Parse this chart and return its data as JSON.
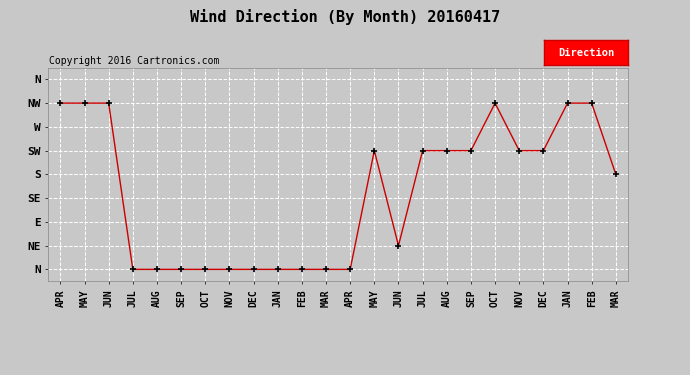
{
  "title": "Wind Direction (By Month) 20160417",
  "copyright": "Copyright 2016 Cartronics.com",
  "legend_label": "Direction",
  "legend_bg": "#ff0000",
  "legend_text_color": "#ffffff",
  "x_labels": [
    "APR",
    "MAY",
    "JUN",
    "JUL",
    "AUG",
    "SEP",
    "OCT",
    "NOV",
    "DEC",
    "JAN",
    "FEB",
    "MAR",
    "APR",
    "MAY",
    "JUN",
    "JUL",
    "AUG",
    "SEP",
    "OCT",
    "NOV",
    "DEC",
    "JAN",
    "FEB",
    "MAR"
  ],
  "y_labels": [
    "N",
    "NE",
    "E",
    "SE",
    "S",
    "SW",
    "W",
    "NW",
    "N"
  ],
  "y_values": [
    0,
    1,
    2,
    3,
    4,
    5,
    6,
    7,
    8
  ],
  "data_points": [
    7,
    7,
    7,
    0,
    0,
    0,
    0,
    0,
    0,
    0,
    0,
    0,
    0,
    5,
    1,
    5,
    5,
    5,
    7,
    5,
    5,
    7,
    7,
    4
  ],
  "line_color": "#cc0000",
  "marker": "+",
  "marker_color": "#000000",
  "bg_color": "#c8c8c8",
  "plot_bg_color": "#c8c8c8",
  "grid_color": "#ffffff",
  "title_fontsize": 11,
  "copyright_fontsize": 7,
  "tick_fontsize": 7,
  "ylabel_fontsize": 8
}
